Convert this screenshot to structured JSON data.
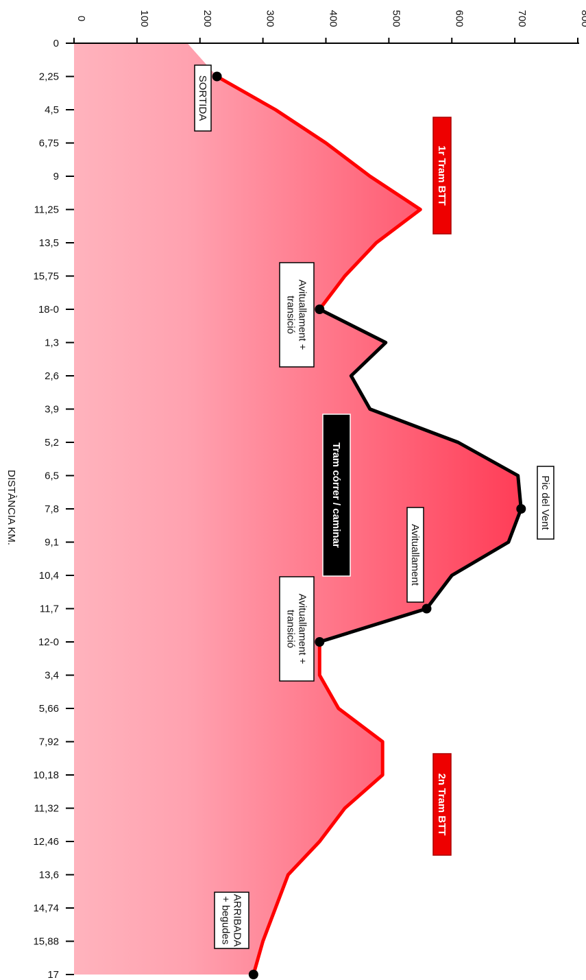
{
  "chart_data": {
    "type": "area",
    "orientation": "vertical-distance",
    "xlabel": "DISTÀNCIA KM.",
    "ylabel": "",
    "ylim": [
      0,
      800
    ],
    "yticks": [
      0,
      100,
      200,
      300,
      400,
      500,
      600,
      700,
      800
    ],
    "categories": [
      "0",
      "2,25",
      "4,5",
      "6,75",
      "9",
      "11,25",
      "13,5",
      "15,75",
      "18-0",
      "1,3",
      "2,6",
      "3,9",
      "5,2",
      "6,5",
      "7,8",
      "9,1",
      "10,4",
      "11,7",
      "12-0",
      "3,4",
      "5,66",
      "7,92",
      "10,18",
      "11,32",
      "12,46",
      "13,6",
      "14,74",
      "15,88",
      "17"
    ],
    "elevation": [
      180,
      227,
      320,
      400,
      470,
      550,
      480,
      430,
      390,
      495,
      440,
      470,
      610,
      705,
      710,
      690,
      600,
      560,
      390,
      390,
      420,
      490,
      490,
      430,
      390,
      340,
      320,
      300,
      285
    ],
    "series": [
      {
        "name": "1r Tram BTT",
        "color": "#ff0000",
        "from": 1,
        "to": 8
      },
      {
        "name": "Tram córrer / caminar",
        "color": "#000000",
        "from": 8,
        "to": 18
      },
      {
        "name": "2n Tram BTT",
        "color": "#ff0000",
        "from": 18,
        "to": 28
      }
    ],
    "markers": [
      {
        "index": 1,
        "value": 227,
        "label": "SORTIDA"
      },
      {
        "index": 8,
        "value": 390,
        "label": "Avituallament + transició"
      },
      {
        "index": 14,
        "value": 710,
        "label": "Pic del Vent"
      },
      {
        "index": 17,
        "value": 560,
        "label": "Avituallament"
      },
      {
        "index": 18,
        "value": 390,
        "label": "Avituallament + transició"
      },
      {
        "index": 28,
        "value": 285,
        "label": "ARRIBADA + begudes"
      }
    ],
    "section_labels": [
      "1r Tram BTT",
      "Tram córrer / caminar",
      "2n Tram BTT"
    ]
  },
  "colors": {
    "btt": "#ff0000",
    "run": "#000000",
    "fill_light": "#ffb6c0",
    "fill_dark": "#ff4d66"
  }
}
